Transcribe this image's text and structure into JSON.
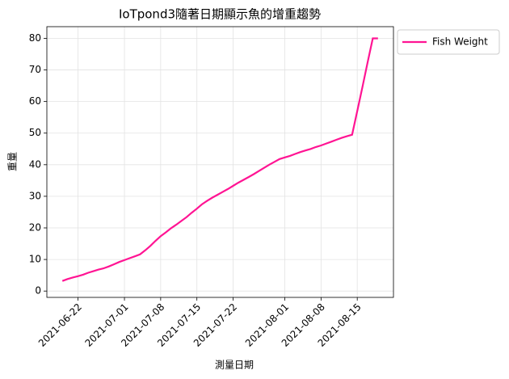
{
  "chart_data": {
    "type": "line",
    "title": "IoTpond3隨著日期顯示魚的增重趨勢",
    "xlabel": "測量日期",
    "ylabel": "重量",
    "x": [
      "2021-06-19",
      "2021-06-20",
      "2021-06-21",
      "2021-06-22",
      "2021-06-23",
      "2021-06-24",
      "2021-06-25",
      "2021-06-26",
      "2021-06-27",
      "2021-06-28",
      "2021-06-29",
      "2021-06-30",
      "2021-07-01",
      "2021-07-02",
      "2021-07-03",
      "2021-07-04",
      "2021-07-05",
      "2021-07-06",
      "2021-07-07",
      "2021-07-08",
      "2021-07-09",
      "2021-07-10",
      "2021-07-11",
      "2021-07-12",
      "2021-07-13",
      "2021-07-14",
      "2021-07-15",
      "2021-07-16",
      "2021-07-17",
      "2021-07-18",
      "2021-07-19",
      "2021-07-20",
      "2021-07-21",
      "2021-07-22",
      "2021-07-23",
      "2021-07-24",
      "2021-07-25",
      "2021-07-26",
      "2021-07-27",
      "2021-07-28",
      "2021-07-29",
      "2021-07-30",
      "2021-07-31",
      "2021-08-01",
      "2021-08-02",
      "2021-08-03",
      "2021-08-04",
      "2021-08-05",
      "2021-08-06",
      "2021-08-07",
      "2021-08-08",
      "2021-08-09",
      "2021-08-10",
      "2021-08-11",
      "2021-08-12",
      "2021-08-13",
      "2021-08-14",
      "2021-08-15",
      "2021-08-16",
      "2021-08-17",
      "2021-08-18",
      "2021-08-19"
    ],
    "series": [
      {
        "name": "Fish Weight",
        "color": "#ff1493",
        "values": [
          3.2,
          3.8,
          4.3,
          4.7,
          5.2,
          5.8,
          6.3,
          6.8,
          7.2,
          7.8,
          8.5,
          9.2,
          9.8,
          10.4,
          11.0,
          11.6,
          12.9,
          14.3,
          15.9,
          17.4,
          18.6,
          19.9,
          21.0,
          22.2,
          23.4,
          24.8,
          26.1,
          27.5,
          28.6,
          29.6,
          30.5,
          31.4,
          32.3,
          33.3,
          34.3,
          35.2,
          36.1,
          37.0,
          38.0,
          39.0,
          40.0,
          40.9,
          41.8,
          42.3,
          42.8,
          43.4,
          44.0,
          44.5,
          45.0,
          45.6,
          46.1,
          46.7,
          47.3,
          47.9,
          48.5,
          49.0,
          49.5,
          57.0,
          64.6,
          72.4,
          80.0,
          80.0
        ]
      }
    ],
    "xlim": [
      "2021-06-16",
      "2021-08-22"
    ],
    "xticks": [
      "2021-06-22",
      "2021-07-01",
      "2021-07-08",
      "2021-07-15",
      "2021-07-22",
      "2021-08-01",
      "2021-08-08",
      "2021-08-15"
    ],
    "ylim": [
      -2,
      83.7
    ],
    "yticks": [
      0,
      10,
      20,
      30,
      40,
      50,
      60,
      70,
      80
    ],
    "grid": true,
    "legend": "outside upper right"
  }
}
